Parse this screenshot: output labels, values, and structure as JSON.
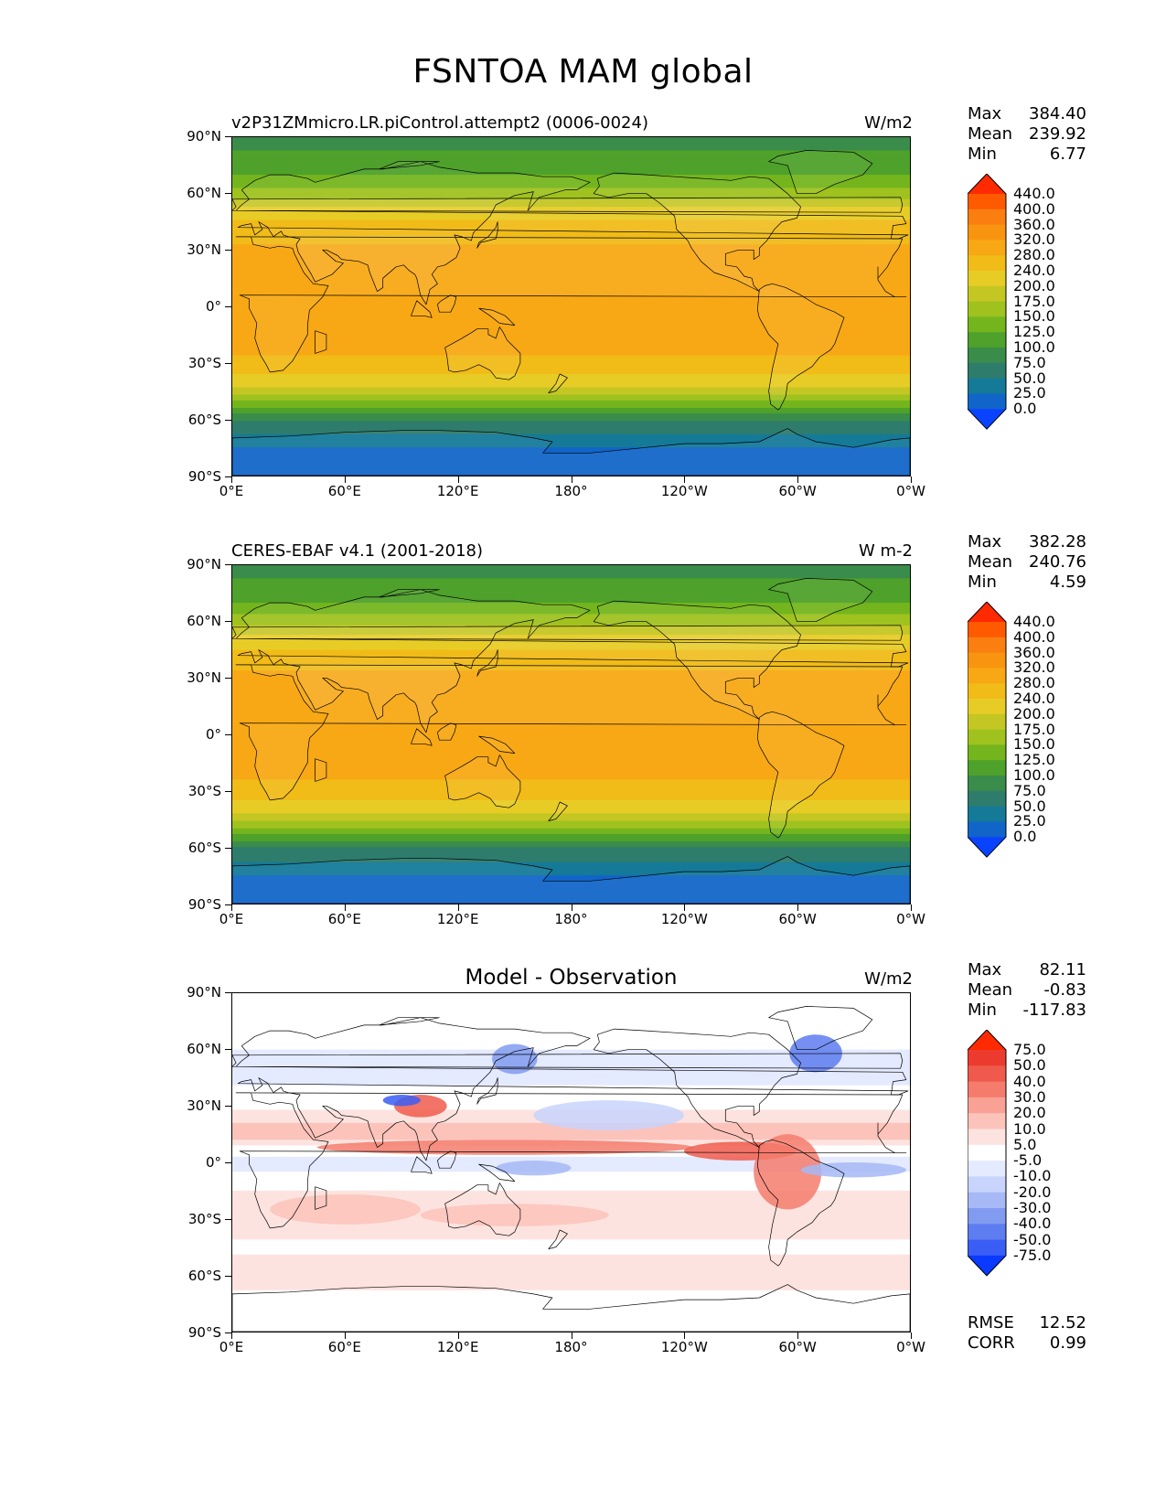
{
  "figure": {
    "title": "FSNTOA MAM global"
  },
  "axes": {
    "lat_labels": [
      "90°N",
      "60°N",
      "30°N",
      "0°",
      "30°S",
      "60°S",
      "90°S"
    ],
    "lon_labels": [
      "0°E",
      "60°E",
      "120°E",
      "180°",
      "120°W",
      "60°W",
      "0°W"
    ]
  },
  "panels": [
    {
      "title": "v2P31ZMmicro.LR.piControl.attempt2 (0006-0024)",
      "units": "W/m2",
      "stats": {
        "max_label": "Max",
        "max": "384.40",
        "mean_label": "Mean",
        "mean": "239.92",
        "min_label": "Min",
        "min": "6.77"
      }
    },
    {
      "title": "CERES-EBAF v4.1 (2001-2018)",
      "units": "W m-2",
      "stats": {
        "max_label": "Max",
        "max": "382.28",
        "mean_label": "Mean",
        "mean": "240.76",
        "min_label": "Min",
        "min": "4.59"
      }
    },
    {
      "title": "Model - Observation",
      "units": "W/m2",
      "stats": {
        "max_label": "Max",
        "max": "82.11",
        "mean_label": "Mean",
        "mean": "-0.83",
        "min_label": "Min",
        "min": "-117.83"
      },
      "metrics": {
        "rmse_label": "RMSE",
        "rmse": "12.52",
        "corr_label": "CORR",
        "corr": "0.99"
      }
    }
  ],
  "colorbars": {
    "field": {
      "levels": [
        "440.0",
        "400.0",
        "360.0",
        "320.0",
        "280.0",
        "240.0",
        "200.0",
        "175.0",
        "150.0",
        "125.0",
        "100.0",
        "75.0",
        "50.0",
        "25.0",
        "0.0"
      ],
      "colors": [
        "#ff2a00",
        "#ff5a00",
        "#fb7e10",
        "#f99410",
        "#f8a814",
        "#f1bb18",
        "#e8cc26",
        "#c4c623",
        "#9fc21f",
        "#74b51e",
        "#4ea12a",
        "#3a8c4a",
        "#2e7c6c",
        "#147a98",
        "#1165c8",
        "#0a43ff"
      ]
    },
    "diff": {
      "levels": [
        "75.0",
        "50.0",
        "40.0",
        "30.0",
        "20.0",
        "10.0",
        "5.0",
        "-5.0",
        "-10.0",
        "-20.0",
        "-30.0",
        "-40.0",
        "-50.0",
        "-75.0"
      ],
      "colors": [
        "#ff2a00",
        "#ec3b2e",
        "#f05a4c",
        "#f57c6d",
        "#f9a195",
        "#fcc3bb",
        "#fde3df",
        "#ffffff",
        "#e4eaff",
        "#c8d4fb",
        "#a6b9f6",
        "#819bf0",
        "#5d7df0",
        "#3a5ef5",
        "#0a3aff"
      ]
    }
  },
  "chart_data": [
    {
      "type": "heatmap",
      "title": "v2P31ZMmicro.LR.piControl.attempt2 (0006-0024)",
      "units": "W/m2",
      "xlabel": "",
      "ylabel": "",
      "x_ticks": [
        "0°E",
        "60°E",
        "120°E",
        "180°",
        "120°W",
        "60°W",
        "0°W"
      ],
      "y_ticks": [
        "90°N",
        "60°N",
        "30°N",
        "0°",
        "30°S",
        "60°S",
        "90°S"
      ],
      "lat": [
        90,
        75,
        60,
        45,
        30,
        15,
        0,
        -15,
        -30,
        -45,
        -60,
        -75,
        -90
      ],
      "zonal_mean": [
        95,
        105,
        160,
        245,
        290,
        315,
        310,
        305,
        270,
        190,
        80,
        25,
        15
      ],
      "clevels": [
        0,
        25,
        50,
        75,
        100,
        125,
        150,
        175,
        200,
        240,
        280,
        320,
        360,
        400,
        440
      ],
      "stats": {
        "max": 384.4,
        "mean": 239.92,
        "min": 6.77
      }
    },
    {
      "type": "heatmap",
      "title": "CERES-EBAF v4.1 (2001-2018)",
      "units": "W m-2",
      "xlabel": "",
      "ylabel": "",
      "x_ticks": [
        "0°E",
        "60°E",
        "120°E",
        "180°",
        "120°W",
        "60°W",
        "0°W"
      ],
      "y_ticks": [
        "90°N",
        "60°N",
        "30°N",
        "0°",
        "30°S",
        "60°S",
        "90°S"
      ],
      "lat": [
        90,
        75,
        60,
        45,
        30,
        15,
        0,
        -15,
        -30,
        -45,
        -60,
        -75,
        -90
      ],
      "zonal_mean": [
        95,
        105,
        165,
        240,
        295,
        320,
        305,
        300,
        265,
        185,
        75,
        25,
        15
      ],
      "clevels": [
        0,
        25,
        50,
        75,
        100,
        125,
        150,
        175,
        200,
        240,
        280,
        320,
        360,
        400,
        440
      ],
      "stats": {
        "max": 382.28,
        "mean": 240.76,
        "min": 4.59
      }
    },
    {
      "type": "heatmap",
      "title": "Model - Observation",
      "units": "W/m2",
      "xlabel": "",
      "ylabel": "",
      "x_ticks": [
        "0°E",
        "60°E",
        "120°E",
        "180°",
        "120°W",
        "60°W",
        "0°W"
      ],
      "y_ticks": [
        "90°N",
        "60°N",
        "30°N",
        "0°",
        "30°S",
        "60°S",
        "90°S"
      ],
      "lat": [
        90,
        75,
        60,
        45,
        30,
        15,
        0,
        -15,
        -30,
        -45,
        -60,
        -75,
        -90
      ],
      "zonal_mean": [
        0,
        -5,
        -5,
        -8,
        3,
        15,
        -10,
        5,
        10,
        3,
        10,
        0,
        0
      ],
      "clevels": [
        -75,
        -50,
        -40,
        -30,
        -20,
        -10,
        -5,
        5,
        10,
        20,
        30,
        40,
        50,
        75
      ],
      "stats": {
        "max": 82.11,
        "mean": -0.83,
        "min": -117.83,
        "rmse": 12.52,
        "corr": 0.99
      }
    }
  ]
}
